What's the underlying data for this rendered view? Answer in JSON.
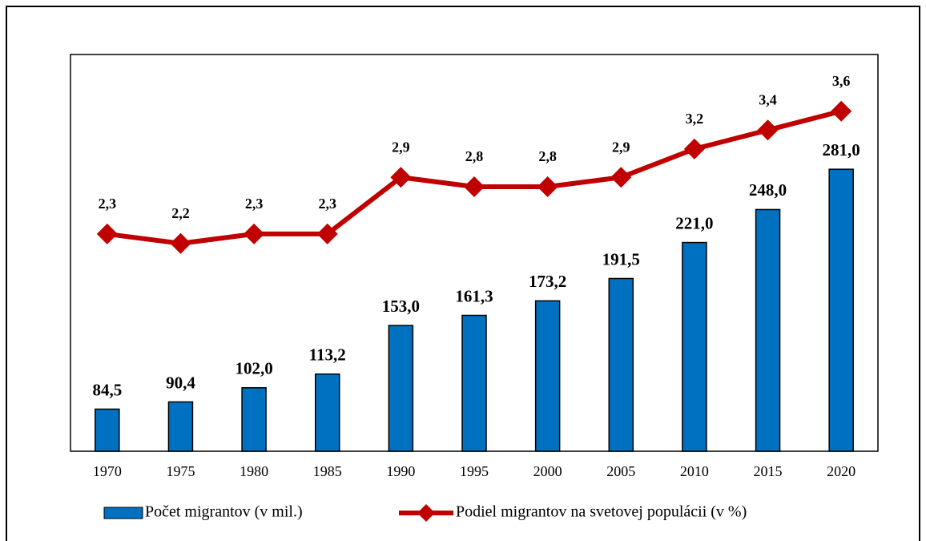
{
  "chart_data": {
    "type": "bar-line",
    "categories": [
      "1970",
      "1975",
      "1980",
      "1985",
      "1990",
      "1995",
      "2000",
      "2005",
      "2010",
      "2015",
      "2020"
    ],
    "series": [
      {
        "name": "Počet migrantov (v mil.)",
        "type": "bar",
        "color": "#0070c0",
        "values": [
          84.5,
          90.4,
          102.0,
          113.2,
          153.0,
          161.3,
          173.2,
          191.5,
          221.0,
          248.0,
          281.0
        ],
        "value_labels": [
          "84,5",
          "90,4",
          "102,0",
          "113,2",
          "153,0",
          "161,3",
          "173,2",
          "191,5",
          "221,0",
          "248,0",
          "281,0"
        ]
      },
      {
        "name": "Podiel migrantov na svetovej populácii (v %)",
        "type": "line",
        "axis": "y2",
        "color": "#c00000",
        "values": [
          2.3,
          2.2,
          2.3,
          2.3,
          2.9,
          2.8,
          2.8,
          2.9,
          3.2,
          3.4,
          3.6
        ],
        "value_labels": [
          "2,3",
          "2,2",
          "2,3",
          "2,3",
          "2,9",
          "2,8",
          "2,8",
          "2,9",
          "3,2",
          "3,4",
          "3,6"
        ]
      }
    ],
    "ylim": [
      50,
      375
    ],
    "y2lim": [
      0,
      4.2
    ],
    "legend": "bottom"
  }
}
